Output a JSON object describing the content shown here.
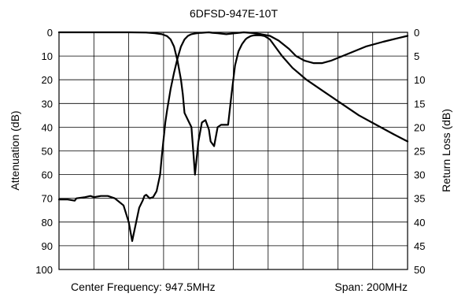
{
  "chart_data": {
    "type": "line",
    "title": "6DFSD-947E-10T",
    "ylabel": "Attenuation (dB)",
    "y2label": "Return Loss (dB)",
    "footer_left": "Center Frequency: 947.5MHz",
    "footer_right": "Span: 200MHz",
    "x_unit": "MHz",
    "xlim": [
      847.5,
      1047.5
    ],
    "ylim": [
      0,
      100
    ],
    "y2lim": [
      0,
      50
    ],
    "y_inverted": true,
    "grid": true,
    "x_divisions": 10,
    "y_ticks": [
      "0",
      "10",
      "20",
      "30",
      "40",
      "50",
      "60",
      "70",
      "80",
      "90",
      "100"
    ],
    "y2_ticks": [
      "0",
      "5",
      "10",
      "15",
      "20",
      "25",
      "30",
      "35",
      "40",
      "45",
      "50"
    ],
    "series": [
      {
        "axis": "left",
        "x": [
          847.5,
          852.5,
          856.5,
          857.5,
          862.5,
          865.5,
          867.5,
          871.5,
          875.5,
          879.5,
          884.5,
          887.5,
          889.5,
          893.5,
          895.5,
          896.5,
          897.5,
          899.5,
          901.5,
          903.5,
          905.5,
          906.5,
          907.5,
          908.5,
          909.5,
          911.5,
          913.5,
          915.5,
          917.5,
          919.5,
          921.5,
          923.5,
          925.5,
          927.5,
          929.5,
          931.5,
          933.5,
          935.5,
          938.5,
          943.5,
          948.5,
          953.5,
          958.5,
          963.5,
          968.5,
          973.5,
          979.5,
          983.5,
          988.5,
          993.5,
          998.5,
          1003.5,
          1013.5,
          1023.5,
          1033.5,
          1047.5
        ],
        "values": [
          70.5,
          70.5,
          71,
          70,
          69.5,
          69,
          69.5,
          69,
          69,
          70,
          73,
          80,
          88,
          74,
          71,
          69,
          68.5,
          70,
          69.5,
          67,
          60,
          52,
          45,
          38,
          33,
          24,
          17,
          11,
          6,
          3,
          1.5,
          0.8,
          0.5,
          0.3,
          0.2,
          0.1,
          0,
          0.2,
          0.4,
          0.8,
          0.4,
          0,
          0.3,
          0.8,
          1.5,
          3.5,
          7,
          10,
          12,
          13,
          13,
          12,
          9,
          6,
          4,
          1.5
        ]
      },
      {
        "axis": "right",
        "x": [
          847.5,
          858.5,
          867.5,
          877.5,
          887.5,
          897.5,
          902.5,
          906.5,
          909.5,
          911.5,
          913.5,
          915.5,
          917.5,
          918.5,
          919.5,
          921.5,
          923.5,
          924.5,
          925.5,
          927.5,
          929.5,
          931.5,
          933.5,
          934.5,
          936.5,
          938.5,
          940.5,
          942.5,
          944.5,
          946.5,
          948.5,
          950.5,
          952.5,
          953.5,
          954.5,
          955.5,
          956.5,
          957.5,
          958.5,
          959.5,
          961.5,
          963.5,
          965.5,
          968.5,
          971.5,
          975.5,
          981.5,
          989.5,
          999.5,
          1009.5,
          1019.5,
          1029.5,
          1039.5,
          1047.5
        ],
        "values": [
          0,
          0,
          0,
          0,
          0,
          0.05,
          0.2,
          0.4,
          0.8,
          1.5,
          3,
          6,
          10,
          13,
          17,
          18.5,
          20,
          25,
          30,
          23,
          19,
          18.5,
          20.5,
          23,
          24,
          20,
          19.5,
          19.5,
          19.5,
          13,
          7,
          4,
          2.5,
          2,
          1.5,
          1.2,
          1,
          0.8,
          0.7,
          0.65,
          0.6,
          0.65,
          0.8,
          1.5,
          3,
          5,
          7.5,
          10,
          12.5,
          15,
          17.5,
          19.5,
          21.5,
          23
        ]
      }
    ]
  }
}
